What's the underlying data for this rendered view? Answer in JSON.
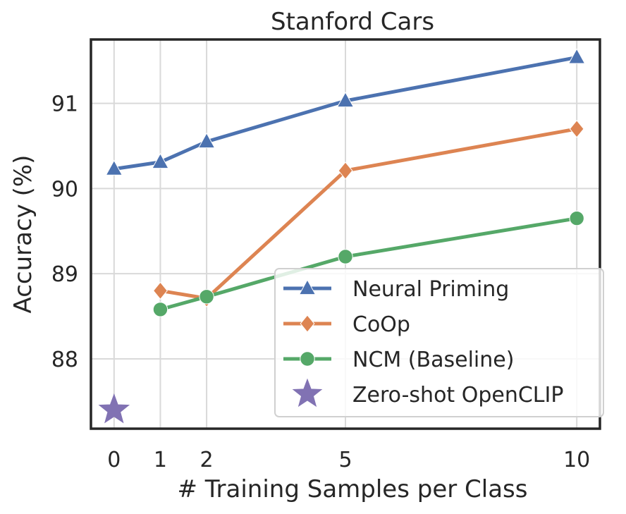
{
  "chart_data": {
    "type": "line",
    "title": "Stanford Cars",
    "xlabel": "# Training Samples per Class",
    "ylabel": "Accuracy (%)",
    "x_ticks": [
      0,
      1,
      2,
      5,
      10
    ],
    "y_ticks": [
      88,
      89,
      90,
      91
    ],
    "xlim": [
      -0.5,
      10.5
    ],
    "ylim": [
      87.18,
      91.75
    ],
    "grid": true,
    "legend_position": "lower-right",
    "series": [
      {
        "name": "Neural Priming",
        "color": "#4c72b0",
        "marker": "triangle",
        "x": [
          0,
          1,
          2,
          5,
          10
        ],
        "y": [
          90.23,
          90.31,
          90.55,
          91.03,
          91.54
        ]
      },
      {
        "name": "CoOp",
        "color": "#dd8452",
        "marker": "diamond",
        "x": [
          1,
          2,
          5,
          10
        ],
        "y": [
          88.8,
          88.71,
          90.21,
          90.7
        ]
      },
      {
        "name": "NCM (Baseline)",
        "color": "#55a868",
        "marker": "circle",
        "x": [
          1,
          2,
          5,
          10
        ],
        "y": [
          88.58,
          88.73,
          89.2,
          89.65
        ]
      },
      {
        "name": "Zero-shot OpenCLIP",
        "color": "#8172b3",
        "marker": "star",
        "x": [
          0
        ],
        "y": [
          87.4
        ]
      }
    ]
  }
}
